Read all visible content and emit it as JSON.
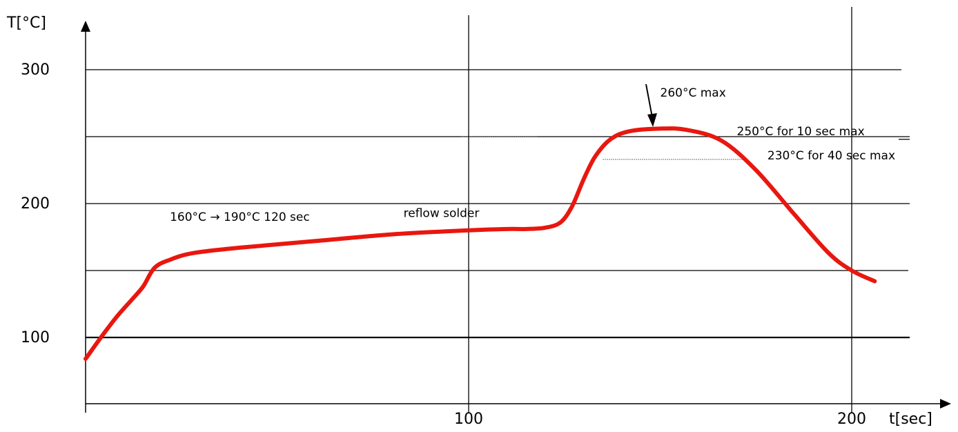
{
  "chart_data": {
    "type": "line",
    "xlabel": "t[sec]",
    "ylabel": "T[°C]",
    "x_ticks": [
      {
        "value": 100,
        "label": "100"
      },
      {
        "value": 200,
        "label": "200"
      }
    ],
    "y_ticks": [
      {
        "value": 100,
        "label": "100"
      },
      {
        "value": 200,
        "label": "200"
      },
      {
        "value": 300,
        "label": "300"
      }
    ],
    "y_gridlines": [
      100,
      150,
      200,
      250,
      300
    ],
    "x_gridlines": [
      100,
      200
    ],
    "xlim": [
      0,
      227
    ],
    "ylim": [
      50,
      330
    ],
    "grid": true,
    "color": "#e8170f",
    "series": [
      {
        "x": [
          0,
          4,
          8,
          12,
          15,
          18,
          22,
          28,
          40,
          60,
          80,
          100,
          110,
          115,
          120,
          124,
          127,
          130,
          133,
          137,
          142,
          150,
          157,
          166,
          175,
          185,
          194,
          200,
          206
        ],
        "y": [
          84,
          100,
          115,
          128,
          138,
          152,
          158,
          163,
          167,
          172,
          177,
          180,
          181,
          181,
          182,
          186,
          198,
          218,
          235,
          248,
          254,
          256,
          255,
          247,
          225,
          192,
          163,
          150,
          142
        ]
      }
    ],
    "annotations": [
      {
        "text": "160°C → 190°C  120 sec",
        "x": 22,
        "y": 187
      },
      {
        "text": "reflow solder",
        "x": 83,
        "y": 190
      },
      {
        "text": "260°C max",
        "x": 150,
        "y": 280
      },
      {
        "text": "250°C for 10 sec max",
        "x": 170,
        "y": 251
      },
      {
        "text": "230°C for 40 sec max",
        "x": 178,
        "y": 233
      }
    ],
    "reference_lines": [
      {
        "y": 250,
        "x": [
          98,
          118
        ],
        "style": "dotted"
      },
      {
        "y": 233,
        "x": [
          135,
          172
        ],
        "style": "dotted"
      }
    ]
  }
}
